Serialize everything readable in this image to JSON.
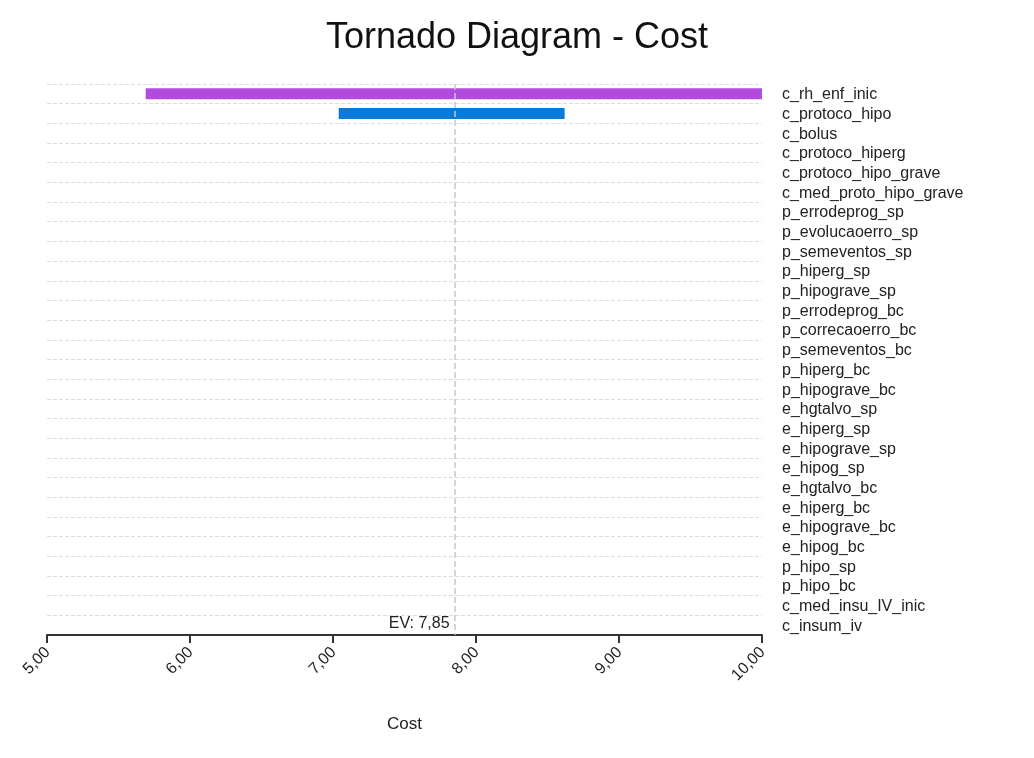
{
  "chart_data": {
    "type": "bar",
    "title": "Tornado Diagram - Cost",
    "xlabel": "Cost",
    "orientation": "horizontal",
    "categories": [
      "c_rh_enf_inic",
      "c_protoco_hipo",
      "c_bolus",
      "c_protoco_hiperg",
      "c_protoco_hipo_grave",
      "c_med_proto_hipo_grave",
      "p_errodeprog_sp",
      "p_evolucaoerro_sp",
      "p_semeventos_sp",
      "p_hiperg_sp",
      "p_hipograve_sp",
      "p_errodeprog_bc",
      "p_correcaoerro_bc",
      "p_semeventos_bc",
      "p_hiperg_bc",
      "p_hipograve_bc",
      "e_hgtalvo_sp",
      "e_hiperg_sp",
      "e_hipograve_sp",
      "e_hipog_sp",
      "e_hgtalvo_bc",
      "e_hiperg_bc",
      "e_hipograve_bc",
      "e_hipog_bc",
      "p_hipo_sp",
      "p_hipo_bc",
      "c_med_insu_IV_inic",
      "c_insum_iv"
    ],
    "base": [
      5.69,
      7.04,
      null,
      null,
      null,
      null,
      null,
      null,
      null,
      null,
      null,
      null,
      null,
      null,
      null,
      null,
      null,
      null,
      null,
      null,
      null,
      null,
      null,
      null,
      null,
      null,
      null,
      null
    ],
    "values": [
      4.31,
      1.58,
      null,
      null,
      null,
      null,
      null,
      null,
      null,
      null,
      null,
      null,
      null,
      null,
      null,
      null,
      null,
      null,
      null,
      null,
      null,
      null,
      null,
      null,
      null,
      null,
      null,
      null
    ],
    "colors": [
      "#b44be1",
      "#0a7ad8",
      null,
      null,
      null,
      null,
      null,
      null,
      null,
      null,
      null,
      null,
      null,
      null,
      null,
      null,
      null,
      null,
      null,
      null,
      null,
      null,
      null,
      null,
      null,
      null,
      null,
      null
    ],
    "xlim": [
      5,
      10
    ],
    "xticks": [
      {
        "value": 5,
        "label": "5,00"
      },
      {
        "value": 6,
        "label": "6,00"
      },
      {
        "value": 7,
        "label": "7,00"
      },
      {
        "value": 8,
        "label": "8,00"
      },
      {
        "value": 9,
        "label": "9,00"
      },
      {
        "value": 10,
        "label": "10,00"
      }
    ],
    "ref_lines": [
      {
        "axis": "x",
        "value": 7.85,
        "label": "EV: 7,85",
        "color": "#c8c8c8",
        "line_style": "dashed"
      }
    ],
    "grid": "y"
  }
}
